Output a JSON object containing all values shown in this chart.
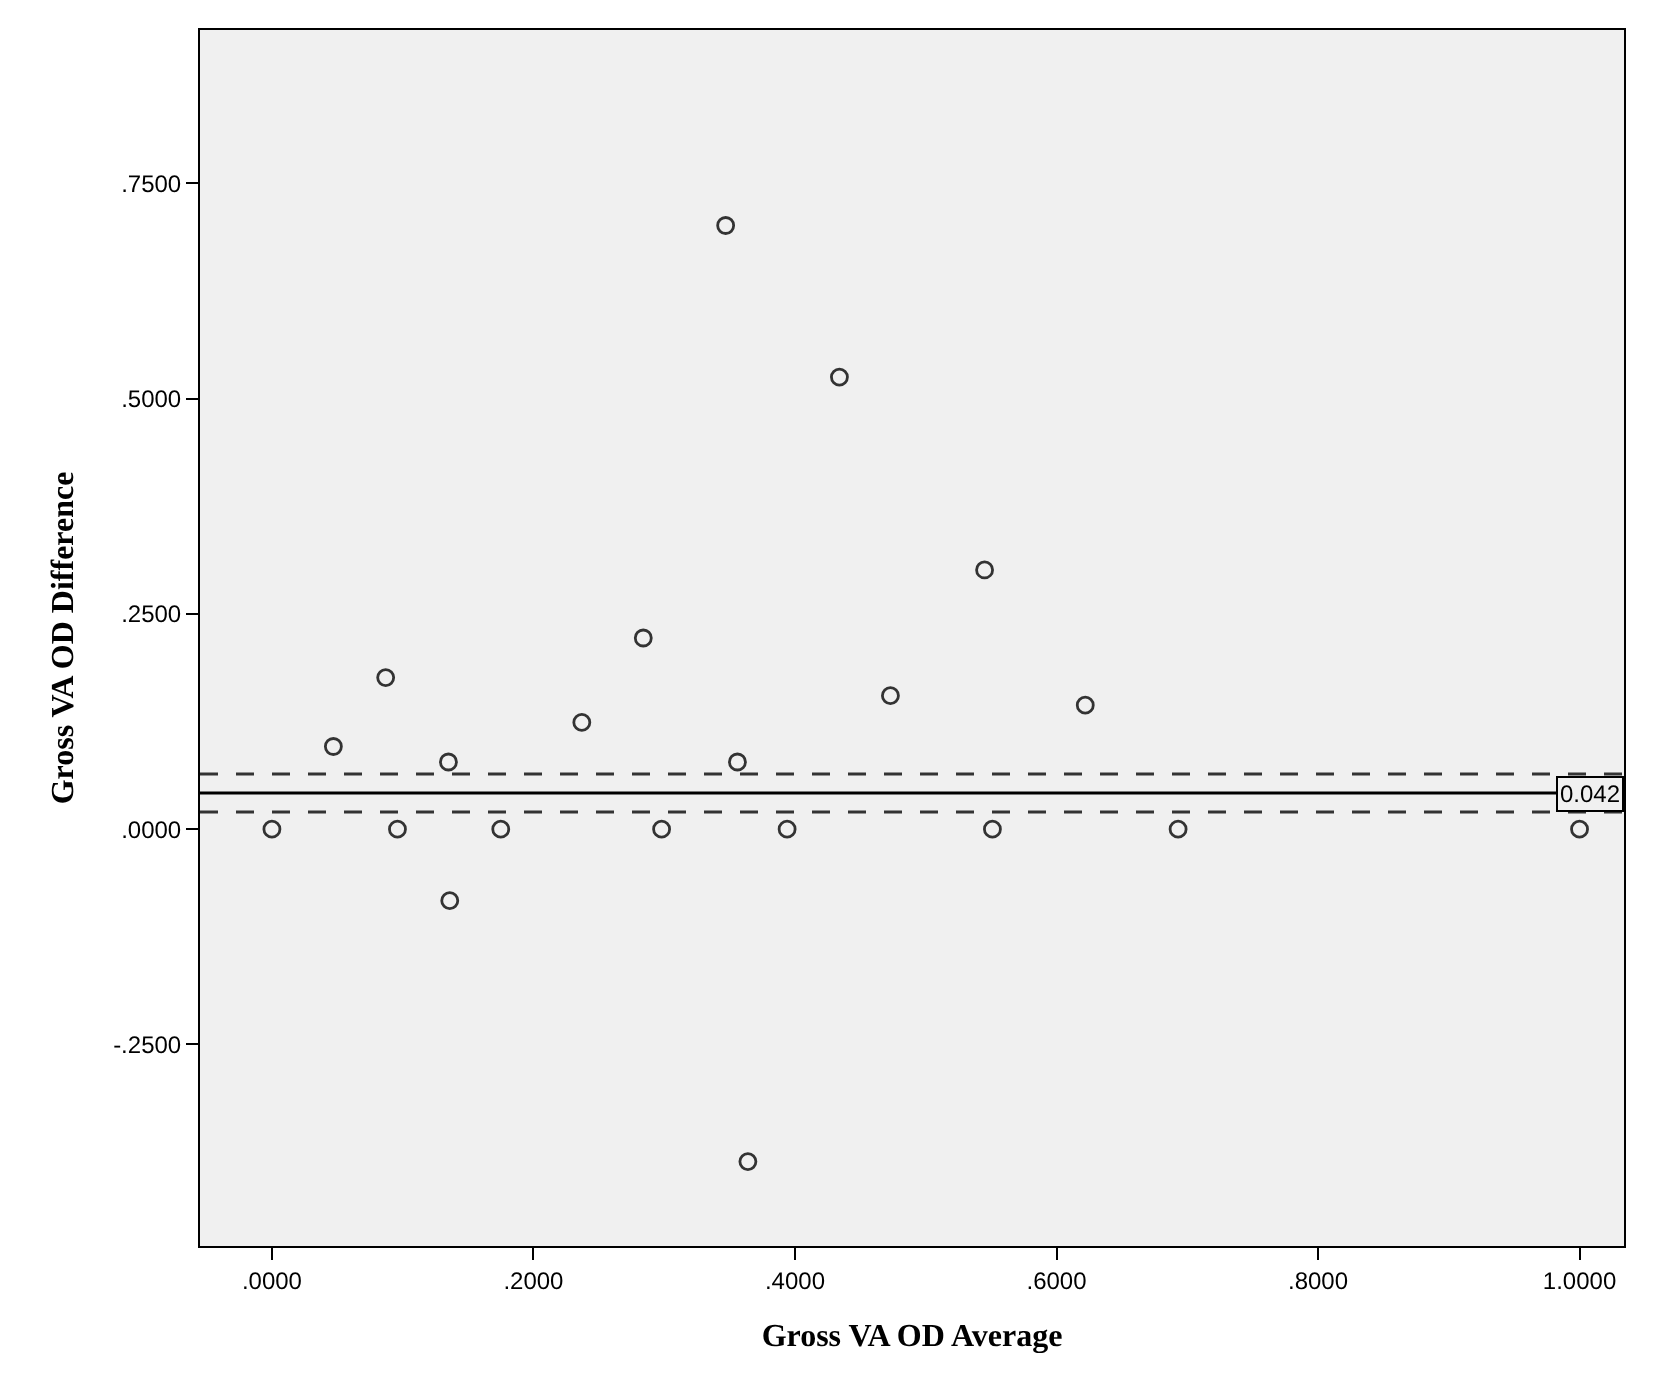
{
  "chart_data": {
    "type": "scatter",
    "xlabel": "Gross VA OD Average",
    "ylabel": "Gross VA OD Difference",
    "x": [
      0,
      0.047,
      0.087,
      0.135,
      0.096,
      0.175,
      0.237,
      0.284,
      0.298,
      0.347,
      0.356,
      0.394,
      0.434,
      0.473,
      0.545,
      0.622,
      0.551,
      0.693,
      1.0,
      0.136,
      0.364
    ],
    "series": [
      {
        "color": "#333333",
        "values": [
          0,
          0.096,
          0.176,
          0.078,
          0,
          0,
          0.124,
          0.222,
          0,
          0.701,
          0.078,
          0,
          0.525,
          0.155,
          0.301,
          0.144,
          0,
          0,
          0,
          -0.083,
          -0.386
        ]
      }
    ],
    "marker": "circle",
    "grid": false,
    "xlim": [
      -0.055,
      1.034
    ],
    "ylim": [
      -0.484,
      0.928
    ],
    "xticks": [
      {
        "value": 0,
        "label": ".0000"
      },
      {
        "value": 0.2,
        "label": ".2000"
      },
      {
        "value": 0.4,
        "label": ".4000"
      },
      {
        "value": 0.6,
        "label": ".6000"
      },
      {
        "value": 0.8,
        "label": ".8000"
      },
      {
        "value": 1.0,
        "label": "1.0000"
      }
    ],
    "yticks": [
      {
        "value": -0.25,
        "label": "-.2500"
      },
      {
        "value": 0,
        "label": ".0000"
      },
      {
        "value": 0.25,
        "label": ".2500"
      },
      {
        "value": 0.5,
        "label": ".5000"
      },
      {
        "value": 0.75,
        "label": ".7500"
      }
    ],
    "ref_lines": [
      {
        "axis": "y",
        "value": 0.042,
        "label": "0.042",
        "color": "#000000",
        "line_style": "solid"
      },
      {
        "axis": "y",
        "value": 0.064,
        "color": "#333333",
        "line_style": "dashed"
      },
      {
        "axis": "y",
        "value": 0.02,
        "color": "#333333",
        "line_style": "dashed"
      }
    ]
  }
}
